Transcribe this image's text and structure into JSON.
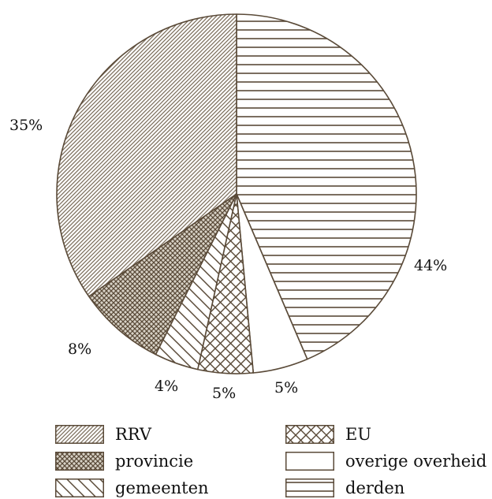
{
  "chart_data": {
    "type": "pie",
    "title": "",
    "slices": [
      {
        "name": "derden",
        "value": 44,
        "label": "44%",
        "pattern": "horizontal-lines"
      },
      {
        "name": "overige overheid",
        "value": 5,
        "label": "5%",
        "pattern": "blank"
      },
      {
        "name": "EU",
        "value": 5,
        "label": "5%",
        "pattern": "crosshatch"
      },
      {
        "name": "gemeenten",
        "value": 4,
        "label": "4%",
        "pattern": "wide-diagonal"
      },
      {
        "name": "provincie",
        "value": 8,
        "label": "8%",
        "pattern": "dense-crosshatch"
      },
      {
        "name": "RRV",
        "value": 35,
        "label": "35%",
        "pattern": "fine-diagonal"
      }
    ],
    "start_angle": "12 o'clock",
    "direction": "clockwise",
    "legend": {
      "position": "bottom",
      "entries": [
        "RRV",
        "EU",
        "provincie",
        "overige overheid",
        "gemeenten",
        "derden"
      ]
    }
  },
  "colors": {
    "stroke": "#5a4a38",
    "background": "#ffffff",
    "text": "#111111"
  }
}
